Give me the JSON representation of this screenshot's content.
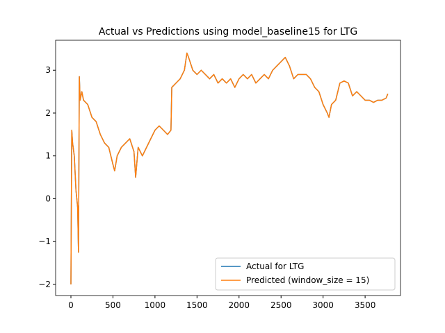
{
  "chart_data": {
    "type": "line",
    "title": "Actual vs Predictions using model_baseline15 for LTG",
    "x": [
      0,
      10,
      20,
      40,
      60,
      80,
      90,
      100,
      110,
      130,
      150,
      200,
      250,
      300,
      350,
      400,
      450,
      500,
      520,
      550,
      600,
      650,
      700,
      750,
      770,
      800,
      850,
      900,
      950,
      1000,
      1050,
      1100,
      1150,
      1190,
      1200,
      1250,
      1300,
      1350,
      1380,
      1400,
      1450,
      1500,
      1550,
      1600,
      1650,
      1700,
      1750,
      1800,
      1850,
      1900,
      1950,
      2000,
      2050,
      2100,
      2150,
      2200,
      2250,
      2300,
      2350,
      2400,
      2450,
      2500,
      2550,
      2600,
      2650,
      2700,
      2750,
      2800,
      2850,
      2900,
      2950,
      3000,
      3050,
      3070,
      3100,
      3150,
      3200,
      3250,
      3300,
      3350,
      3400,
      3450,
      3500,
      3550,
      3600,
      3650,
      3700,
      3750,
      3770
    ],
    "series": [
      {
        "name": "Actual for LTG",
        "color": "#1f77b4",
        "values": [
          -2.0,
          1.6,
          1.3,
          1.0,
          0.2,
          -0.2,
          -1.25,
          2.85,
          2.3,
          2.5,
          2.3,
          2.2,
          1.9,
          1.8,
          1.5,
          1.3,
          1.2,
          0.8,
          0.65,
          1.0,
          1.2,
          1.3,
          1.4,
          1.1,
          0.5,
          1.2,
          1.0,
          1.2,
          1.4,
          1.6,
          1.7,
          1.6,
          1.5,
          1.6,
          2.6,
          2.7,
          2.8,
          3.0,
          3.4,
          3.3,
          3.0,
          2.9,
          3.0,
          2.9,
          2.8,
          2.9,
          2.7,
          2.8,
          2.7,
          2.8,
          2.6,
          2.8,
          2.9,
          2.8,
          2.9,
          2.7,
          2.8,
          2.9,
          2.8,
          3.0,
          3.1,
          3.2,
          3.3,
          3.1,
          2.8,
          2.9,
          2.9,
          2.9,
          2.8,
          2.6,
          2.5,
          2.2,
          2.0,
          1.9,
          2.2,
          2.3,
          2.7,
          2.75,
          2.7,
          2.4,
          2.5,
          2.4,
          2.3,
          2.3,
          2.25,
          2.3,
          2.3,
          2.35,
          2.45
        ]
      },
      {
        "name": "Predicted (window_size = 15)",
        "color": "#ff7f0e",
        "values": [
          -2.0,
          1.6,
          1.3,
          1.0,
          0.2,
          -0.2,
          -1.25,
          2.85,
          2.3,
          2.5,
          2.3,
          2.2,
          1.9,
          1.8,
          1.5,
          1.3,
          1.2,
          0.8,
          0.65,
          1.0,
          1.2,
          1.3,
          1.4,
          1.1,
          0.5,
          1.2,
          1.0,
          1.2,
          1.4,
          1.6,
          1.7,
          1.6,
          1.5,
          1.6,
          2.6,
          2.7,
          2.8,
          3.0,
          3.4,
          3.3,
          3.0,
          2.9,
          3.0,
          2.9,
          2.8,
          2.9,
          2.7,
          2.8,
          2.7,
          2.8,
          2.6,
          2.8,
          2.9,
          2.8,
          2.9,
          2.7,
          2.8,
          2.9,
          2.8,
          3.0,
          3.1,
          3.2,
          3.3,
          3.1,
          2.8,
          2.9,
          2.9,
          2.9,
          2.8,
          2.6,
          2.5,
          2.2,
          2.0,
          1.9,
          2.2,
          2.3,
          2.7,
          2.75,
          2.7,
          2.4,
          2.5,
          2.4,
          2.3,
          2.3,
          2.25,
          2.3,
          2.3,
          2.35,
          2.45
        ]
      }
    ],
    "xlim": [
      -182,
      3921
    ],
    "ylim": [
      -2.26,
      3.7
    ],
    "xticks": [
      0,
      500,
      1000,
      1500,
      2000,
      2500,
      3000,
      3500
    ],
    "yticks": [
      {
        "value": -2,
        "label": "−2"
      },
      {
        "value": -1,
        "label": "−1"
      },
      0,
      1,
      2,
      3
    ],
    "legend": "lower right",
    "grid": false
  }
}
